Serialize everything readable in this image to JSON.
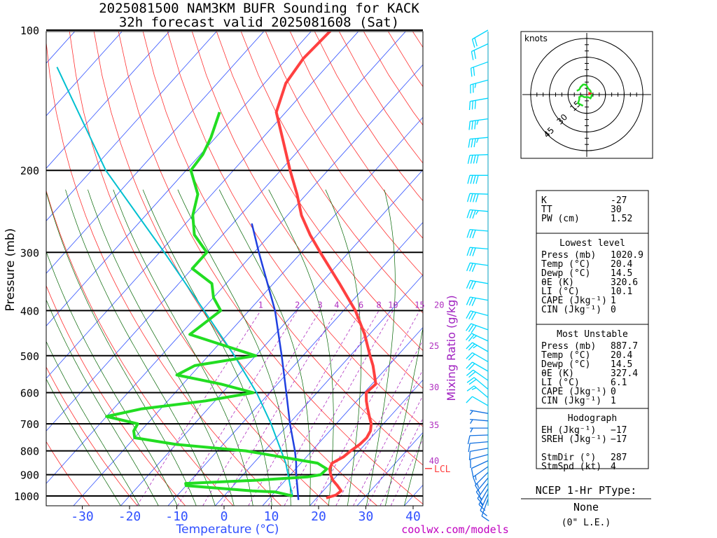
{
  "header": {
    "title_line1": "2025081500 NAM3KM BUFR Sounding for KACK",
    "title_line2": "32h forecast valid 2025081608 (Sat)"
  },
  "colors": {
    "temperature": "#ff4040",
    "dewpoint": "#22dd22",
    "parcel": "#00c0d0",
    "wetbulb_line": "#2040e0",
    "isotherm": "#3050ff",
    "dry_adiabat": "#ff3030",
    "moist_adiabat": "#006400",
    "mixing_ratio": "#b030c0",
    "wind_barb": "#00d8ff",
    "axis_label_blue": "#3050ff",
    "lcl": "#ff4040",
    "site_text": "#c000c0"
  },
  "chart_data": {
    "type": "skew-t",
    "xlabel": "Temperature (°C)",
    "ylabel": "Pressure (mb)",
    "right_label": "Mixing Ratio (g/kg)",
    "x_ticks": [
      "-30",
      "-20",
      "-10",
      "0",
      "10",
      "20",
      "30",
      "40"
    ],
    "pressure_ticks": [
      "100",
      "200",
      "300",
      "400",
      "500",
      "600",
      "700",
      "800",
      "900",
      "1000"
    ],
    "mixing_ratio_labels": [
      "1",
      "2",
      "3",
      "4",
      "6",
      "8",
      "10",
      "15",
      "20",
      "25",
      "30",
      "35",
      "40"
    ],
    "xlim": [
      -40,
      40
    ],
    "ylim_mb": [
      1050,
      100
    ],
    "temperature_profile": [
      [
        1010,
        22.0
      ],
      [
        995,
        23.5
      ],
      [
        975,
        23.8
      ],
      [
        950,
        22.0
      ],
      [
        925,
        20.0
      ],
      [
        900,
        18.5
      ],
      [
        875,
        17.2
      ],
      [
        850,
        16.6
      ],
      [
        825,
        17.8
      ],
      [
        800,
        18.2
      ],
      [
        775,
        18.9
      ],
      [
        750,
        19.1
      ],
      [
        725,
        18.6
      ],
      [
        700,
        17.4
      ],
      [
        675,
        15.6
      ],
      [
        650,
        13.8
      ],
      [
        625,
        12.0
      ],
      [
        600,
        10.4
      ],
      [
        575,
        10.8
      ],
      [
        550,
        8.8
      ],
      [
        525,
        6.7
      ],
      [
        500,
        4.2
      ],
      [
        450,
        -1.0
      ],
      [
        400,
        -7.5
      ],
      [
        350,
        -16.0
      ],
      [
        300,
        -26.0
      ],
      [
        275,
        -31.5
      ],
      [
        250,
        -37.0
      ],
      [
        225,
        -42.0
      ],
      [
        200,
        -48.0
      ],
      [
        175,
        -54.5
      ],
      [
        150,
        -62.0
      ],
      [
        130,
        -65.5
      ],
      [
        115,
        -66.5
      ],
      [
        100,
        -66.0
      ]
    ],
    "dewpoint_profile": [
      [
        1000,
        14.5
      ],
      [
        980,
        10.0
      ],
      [
        975,
        5.0
      ],
      [
        960,
        -4.0
      ],
      [
        950,
        -10.0
      ],
      [
        940,
        -10.5
      ],
      [
        925,
        4.0
      ],
      [
        910,
        14.0
      ],
      [
        900,
        16.4
      ],
      [
        875,
        16.6
      ],
      [
        850,
        13.5
      ],
      [
        800,
        -4.0
      ],
      [
        775,
        -20.0
      ],
      [
        750,
        -30.0
      ],
      [
        725,
        -31.5
      ],
      [
        700,
        -32.0
      ],
      [
        675,
        -40.0
      ],
      [
        650,
        -34.0
      ],
      [
        625,
        -22.0
      ],
      [
        600,
        -13.5
      ],
      [
        575,
        -22.0
      ],
      [
        550,
        -33.0
      ],
      [
        525,
        -31.0
      ],
      [
        500,
        -20.0
      ],
      [
        450,
        -38.0
      ],
      [
        400,
        -36.0
      ],
      [
        375,
        -40.0
      ],
      [
        350,
        -43.0
      ],
      [
        325,
        -50.0
      ],
      [
        300,
        -50.0
      ],
      [
        275,
        -56.0
      ],
      [
        250,
        -60.0
      ],
      [
        225,
        -63.0
      ],
      [
        200,
        -69.0
      ],
      [
        185,
        -69.5
      ],
      [
        170,
        -71.0
      ],
      [
        150,
        -74.0
      ]
    ],
    "parcel_profile": [
      [
        1000,
        14.5
      ],
      [
        950,
        12.0
      ],
      [
        900,
        9.5
      ],
      [
        850,
        6.8
      ],
      [
        800,
        3.5
      ],
      [
        700,
        -3.8
      ],
      [
        600,
        -12.8
      ],
      [
        500,
        -24.5
      ],
      [
        400,
        -39.5
      ],
      [
        300,
        -59.0
      ],
      [
        200,
        -87.0
      ],
      [
        120,
        -117.0
      ]
    ],
    "wetbulb_profile": [
      [
        1020,
        16.5
      ],
      [
        950,
        13.5
      ],
      [
        900,
        11.2
      ],
      [
        850,
        9.0
      ],
      [
        800,
        6.4
      ],
      [
        700,
        0.2
      ],
      [
        600,
        -6.5
      ],
      [
        500,
        -14.5
      ],
      [
        400,
        -24.5
      ],
      [
        300,
        -39.0
      ],
      [
        260,
        -46.0
      ]
    ],
    "lcl": {
      "label": "LCL",
      "pressure_mb": 873
    },
    "wind_barbs": [
      {
        "p": 1015,
        "dir": 200,
        "spd": 12
      },
      {
        "p": 990,
        "dir": 205,
        "spd": 12
      },
      {
        "p": 965,
        "dir": 210,
        "spd": 13
      },
      {
        "p": 940,
        "dir": 215,
        "spd": 14
      },
      {
        "p": 915,
        "dir": 220,
        "spd": 15
      },
      {
        "p": 890,
        "dir": 225,
        "spd": 15
      },
      {
        "p": 865,
        "dir": 235,
        "spd": 14
      },
      {
        "p": 840,
        "dir": 245,
        "spd": 12
      },
      {
        "p": 815,
        "dir": 255,
        "spd": 10
      },
      {
        "p": 790,
        "dir": 260,
        "spd": 9
      },
      {
        "p": 765,
        "dir": 265,
        "spd": 8
      },
      {
        "p": 740,
        "dir": 268,
        "spd": 8
      },
      {
        "p": 715,
        "dir": 270,
        "spd": 7
      },
      {
        "p": 690,
        "dir": 275,
        "spd": 6
      },
      {
        "p": 665,
        "dir": 280,
        "spd": 6
      },
      {
        "p": 640,
        "dir": 300,
        "spd": 10
      },
      {
        "p": 615,
        "dir": 310,
        "spd": 14
      },
      {
        "p": 590,
        "dir": 310,
        "spd": 18
      },
      {
        "p": 565,
        "dir": 305,
        "spd": 20
      },
      {
        "p": 540,
        "dir": 300,
        "spd": 22
      },
      {
        "p": 515,
        "dir": 300,
        "spd": 22
      },
      {
        "p": 490,
        "dir": 300,
        "spd": 24
      },
      {
        "p": 465,
        "dir": 295,
        "spd": 26
      },
      {
        "p": 440,
        "dir": 290,
        "spd": 28
      },
      {
        "p": 410,
        "dir": 285,
        "spd": 28
      },
      {
        "p": 380,
        "dir": 280,
        "spd": 30
      },
      {
        "p": 350,
        "dir": 280,
        "spd": 30
      },
      {
        "p": 320,
        "dir": 278,
        "spd": 30
      },
      {
        "p": 295,
        "dir": 275,
        "spd": 30
      },
      {
        "p": 270,
        "dir": 275,
        "spd": 32
      },
      {
        "p": 245,
        "dir": 275,
        "spd": 35
      },
      {
        "p": 225,
        "dir": 272,
        "spd": 38
      },
      {
        "p": 205,
        "dir": 270,
        "spd": 40
      },
      {
        "p": 185,
        "dir": 268,
        "spd": 40
      },
      {
        "p": 170,
        "dir": 265,
        "spd": 35
      },
      {
        "p": 155,
        "dir": 262,
        "spd": 35
      },
      {
        "p": 140,
        "dir": 260,
        "spd": 30
      },
      {
        "p": 128,
        "dir": 255,
        "spd": 25
      },
      {
        "p": 117,
        "dir": 250,
        "spd": 22
      },
      {
        "p": 107,
        "dir": 245,
        "spd": 20
      },
      {
        "p": 100,
        "dir": 240,
        "spd": 18
      }
    ]
  },
  "hodograph": {
    "units_label": "knots",
    "ring_labels": [
      "15",
      "30",
      "45"
    ],
    "ring_speeds_kt": [
      15,
      30,
      45
    ],
    "trace_kt": [
      [
        -3,
        9
      ],
      [
        -5,
        8
      ],
      [
        -7,
        7
      ],
      [
        -6,
        4
      ],
      [
        -6,
        2
      ],
      [
        -4,
        1
      ],
      [
        -2,
        2
      ],
      [
        1,
        2
      ],
      [
        3,
        3
      ],
      [
        4,
        1
      ],
      [
        3,
        -3
      ],
      [
        1,
        -5
      ],
      [
        0,
        -7
      ],
      [
        -1,
        -8
      ],
      [
        -3,
        -8
      ],
      [
        -5,
        -6
      ],
      [
        -6,
        -4
      ],
      [
        -8,
        -3
      ]
    ],
    "storm_motion_kt": [
      3,
      1
    ]
  },
  "indices": {
    "k": {
      "label": "K",
      "value": "-27"
    },
    "tt": {
      "label": "TT",
      "value": "30"
    },
    "pw": {
      "label": "PW (cm)",
      "value": "1.52"
    },
    "lowest_header": "Lowest level",
    "lowest": [
      {
        "label": "Press (mb)",
        "value": "1020.9"
      },
      {
        "label": "Temp (°C)",
        "value": "20.4"
      },
      {
        "label": "Dewp (°C)",
        "value": "14.5"
      },
      {
        "label": "θE (K)",
        "value": "320.6"
      },
      {
        "label": "LI (°C)",
        "value": "10.1"
      },
      {
        "label": "CAPE (Jkg⁻¹)",
        "value": "1"
      },
      {
        "label": "CIN (Jkg⁻¹)",
        "value": "0"
      }
    ],
    "unstable_header": "Most Unstable",
    "unstable": [
      {
        "label": "Press (mb)",
        "value": "887.7"
      },
      {
        "label": "Temp (°C)",
        "value": "20.4"
      },
      {
        "label": "Dewp (°C)",
        "value": "14.5"
      },
      {
        "label": "θE (K)",
        "value": "327.4"
      },
      {
        "label": "LI (°C)",
        "value": "6.1"
      },
      {
        "label": "CAPE (Jkg⁻¹)",
        "value": "0"
      },
      {
        "label": "CIN (Jkg⁻¹)",
        "value": "1"
      }
    ],
    "hodo_header": "Hodograph",
    "hodo": [
      {
        "label": "EH (Jkg⁻¹)",
        "value": "−17"
      },
      {
        "label": "SREH (Jkg⁻¹)",
        "value": "−17"
      },
      {
        "label": "StmDir (°)",
        "value": "287"
      },
      {
        "label": "StmSpd (kt)",
        "value": "4"
      }
    ]
  },
  "ptype": {
    "title": "NCEP 1-Hr PType:",
    "value": "None",
    "note": "(0\" L.E.)"
  },
  "footer": {
    "site": "coolwx.com/models"
  }
}
